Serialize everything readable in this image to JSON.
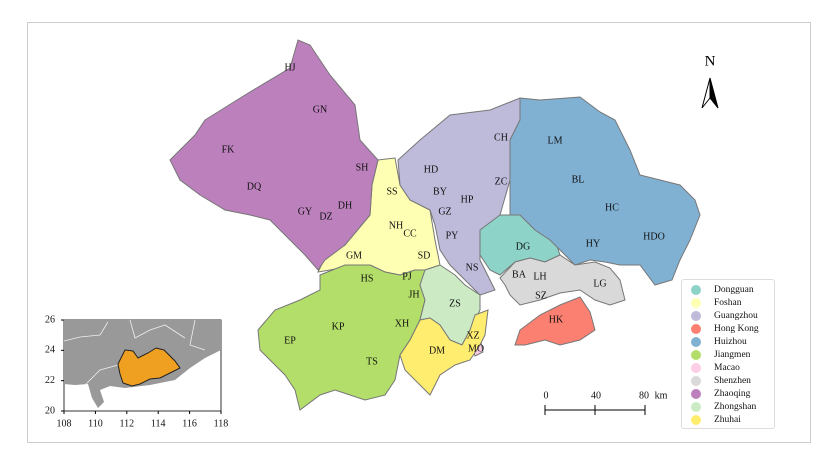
{
  "north_label": "N",
  "scale_bar": {
    "ticks": [
      "0",
      "40",
      "80"
    ],
    "unit": "km"
  },
  "cities": [
    {
      "name": "Dongguan",
      "color": "#8dd3c7",
      "districts": [
        "DG"
      ]
    },
    {
      "name": "Foshan",
      "color": "#ffffb3",
      "districts": [
        "SS",
        "NH",
        "CC",
        "GM",
        "SD"
      ]
    },
    {
      "name": "Guangzhou",
      "color": "#bebada",
      "districts": [
        "CH",
        "HD",
        "ZC",
        "BY",
        "HP",
        "GZ",
        "PY",
        "NS"
      ]
    },
    {
      "name": "Hong Kong",
      "color": "#fb8072",
      "districts": [
        "HK"
      ]
    },
    {
      "name": "Huizhou",
      "color": "#80b1d3",
      "districts": [
        "LM",
        "BL",
        "HC",
        "HY",
        "HDO"
      ]
    },
    {
      "name": "Jiangmen",
      "color": "#b3de69",
      "districts": [
        "HS",
        "PJ",
        "JH",
        "KP",
        "XH",
        "EP",
        "TS"
      ]
    },
    {
      "name": "Macao",
      "color": "#fccde5",
      "districts": [
        "MO"
      ]
    },
    {
      "name": "Shenzhen",
      "color": "#d9d9d9",
      "districts": [
        "BA",
        "LH",
        "SZ",
        "LG"
      ]
    },
    {
      "name": "Zhaoqing",
      "color": "#bc80bd",
      "districts": [
        "HJ",
        "GN",
        "FK",
        "SH",
        "DQ",
        "GY",
        "DH",
        "DZ"
      ]
    },
    {
      "name": "Zhongshan",
      "color": "#ccebc5",
      "districts": [
        "ZS"
      ]
    },
    {
      "name": "Zhuhai",
      "color": "#ffed6f",
      "districts": [
        "DM",
        "XZ"
      ]
    }
  ],
  "inset": {
    "x_ticks": [
      "108",
      "110",
      "112",
      "114",
      "116",
      "118"
    ],
    "y_ticks": [
      "26",
      "24",
      "22",
      "20"
    ],
    "land_color": "#999999",
    "highlight_color": "#f0a020"
  }
}
